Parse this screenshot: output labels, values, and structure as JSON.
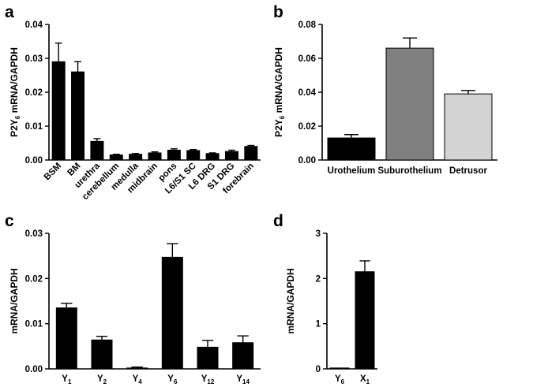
{
  "colors": {
    "bar_black": "#000000",
    "bar_dark_gray": "#808080",
    "bar_light_gray": "#d3d3d3",
    "axis": "#000000"
  },
  "chart_data": [
    {
      "id": "a",
      "panel_label": "a",
      "type": "bar",
      "ylabel": "P2Y6 mRNA/GAPDH",
      "ylabel_parts": {
        "pre": "P2Y",
        "sub": "6",
        "post": " mRNA/GAPDH"
      },
      "ylim": [
        0,
        0.04
      ],
      "yticks": [
        0.0,
        0.01,
        0.02,
        0.03,
        0.04
      ],
      "ytick_labels": [
        "0.00",
        "0.01",
        "0.02",
        "0.03",
        "0.04"
      ],
      "categories": [
        "BSM",
        "BM",
        "urethra",
        "cerebellum",
        "medulla",
        "midbrain",
        "pons",
        "L6/S1 SC",
        "L6 DRG",
        "S1 DRG",
        "forebrain"
      ],
      "values": [
        0.029,
        0.026,
        0.0055,
        0.0015,
        0.0017,
        0.0021,
        0.0029,
        0.0028,
        0.0019,
        0.0025,
        0.004
      ],
      "errors": [
        0.0055,
        0.003,
        0.0008,
        0.0002,
        0.0002,
        0.0003,
        0.0004,
        0.0003,
        0.0002,
        0.0004,
        0.0003
      ],
      "bar_colors": [
        "#000000",
        "#000000",
        "#000000",
        "#000000",
        "#000000",
        "#000000",
        "#000000",
        "#000000",
        "#000000",
        "#000000",
        "#000000"
      ],
      "xlabel": ""
    },
    {
      "id": "b",
      "panel_label": "b",
      "type": "bar",
      "ylabel": "P2Y6 mRNA/GAPDH",
      "ylabel_parts": {
        "pre": "P2Y",
        "sub": "6",
        "post": " mRNA/GAPDH"
      },
      "ylim": [
        0,
        0.08
      ],
      "yticks": [
        0.0,
        0.02,
        0.04,
        0.06,
        0.08
      ],
      "ytick_labels": [
        "0.00",
        "0.02",
        "0.04",
        "0.06",
        "0.08"
      ],
      "categories": [
        "Urothelium",
        "Suburothelium",
        "Detrusor"
      ],
      "values": [
        0.013,
        0.066,
        0.039
      ],
      "errors": [
        0.002,
        0.006,
        0.002
      ],
      "bar_colors": [
        "#000000",
        "#808080",
        "#d3d3d3"
      ],
      "xlabel": ""
    },
    {
      "id": "c",
      "panel_label": "c",
      "type": "bar",
      "ylabel": "mRNA/GAPDH",
      "ylim": [
        0,
        0.03
      ],
      "yticks": [
        0.0,
        0.01,
        0.02,
        0.03
      ],
      "ytick_labels": [
        "0.00",
        "0.01",
        "0.02",
        "0.03"
      ],
      "categories": [
        "Y1",
        "Y2",
        "Y4",
        "Y6",
        "Y12",
        "Y14"
      ],
      "category_parts": [
        {
          "main": "Y",
          "sub": "1"
        },
        {
          "main": "Y",
          "sub": "2"
        },
        {
          "main": "Y",
          "sub": "4"
        },
        {
          "main": "Y",
          "sub": "6"
        },
        {
          "main": "Y",
          "sub": "12"
        },
        {
          "main": "Y",
          "sub": "14"
        }
      ],
      "values": [
        0.0135,
        0.0064,
        0.0002,
        0.0247,
        0.0048,
        0.0058
      ],
      "errors": [
        0.001,
        0.0008,
        0.0002,
        0.003,
        0.0015,
        0.0015
      ],
      "bar_colors": [
        "#000000",
        "#000000",
        "#000000",
        "#000000",
        "#000000",
        "#000000"
      ],
      "xlabel": ""
    },
    {
      "id": "d",
      "panel_label": "d",
      "type": "bar",
      "ylabel": "mRNA/GAPDH",
      "ylim": [
        0,
        3
      ],
      "yticks": [
        0,
        1,
        2,
        3
      ],
      "ytick_labels": [
        "0",
        "1",
        "2",
        "3"
      ],
      "categories": [
        "Y6",
        "X1"
      ],
      "category_parts": [
        {
          "main": "Y",
          "sub": "6"
        },
        {
          "main": "X",
          "sub": "1"
        }
      ],
      "values": [
        0.02,
        2.15
      ],
      "errors": [
        0.0,
        0.24
      ],
      "bar_colors": [
        "#000000",
        "#000000"
      ],
      "xlabel": ""
    }
  ]
}
